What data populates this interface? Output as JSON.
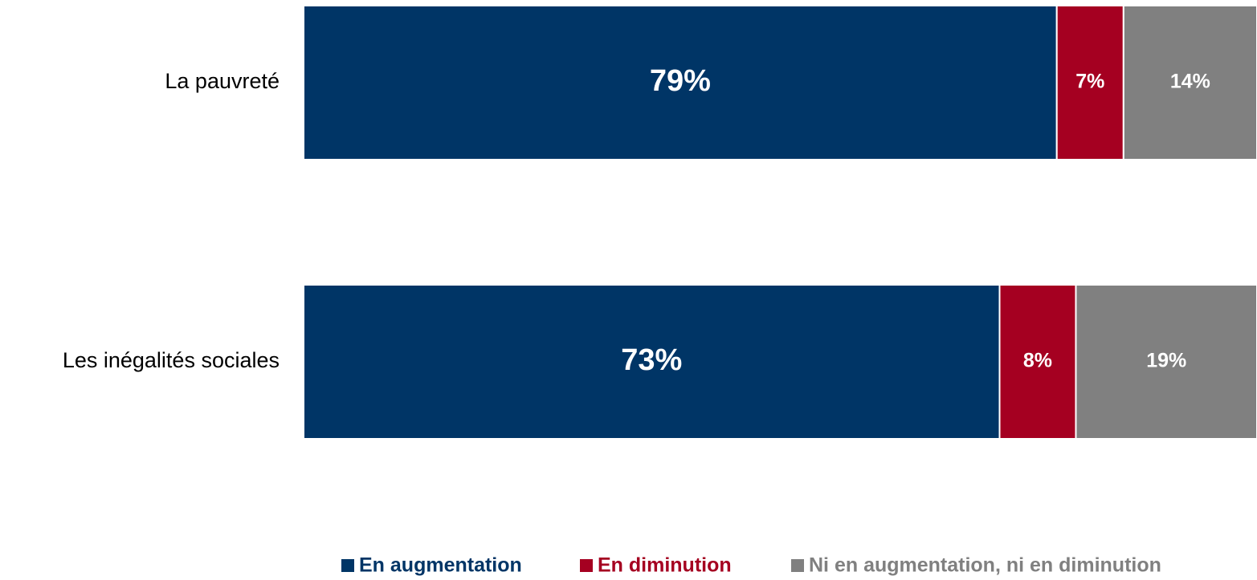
{
  "chart_data": {
    "type": "stacked_bar_horizontal",
    "categories": [
      "La pauvreté",
      "Les inégalités sociales"
    ],
    "xlim": [
      0,
      100
    ],
    "legend": "bottom",
    "series": [
      {
        "name": "En augmentation",
        "color": "#003566",
        "values": [
          79,
          73
        ],
        "value_labels": [
          "79%",
          "73%"
        ]
      },
      {
        "name": "En diminution",
        "color": "#a50021",
        "values": [
          7,
          8
        ],
        "value_labels": [
          "7%",
          "8%"
        ]
      },
      {
        "name": "Ni en augmentation, ni en diminution",
        "color": "#808080",
        "values": [
          14,
          19
        ],
        "value_labels": [
          "14%",
          "19%"
        ]
      }
    ]
  }
}
